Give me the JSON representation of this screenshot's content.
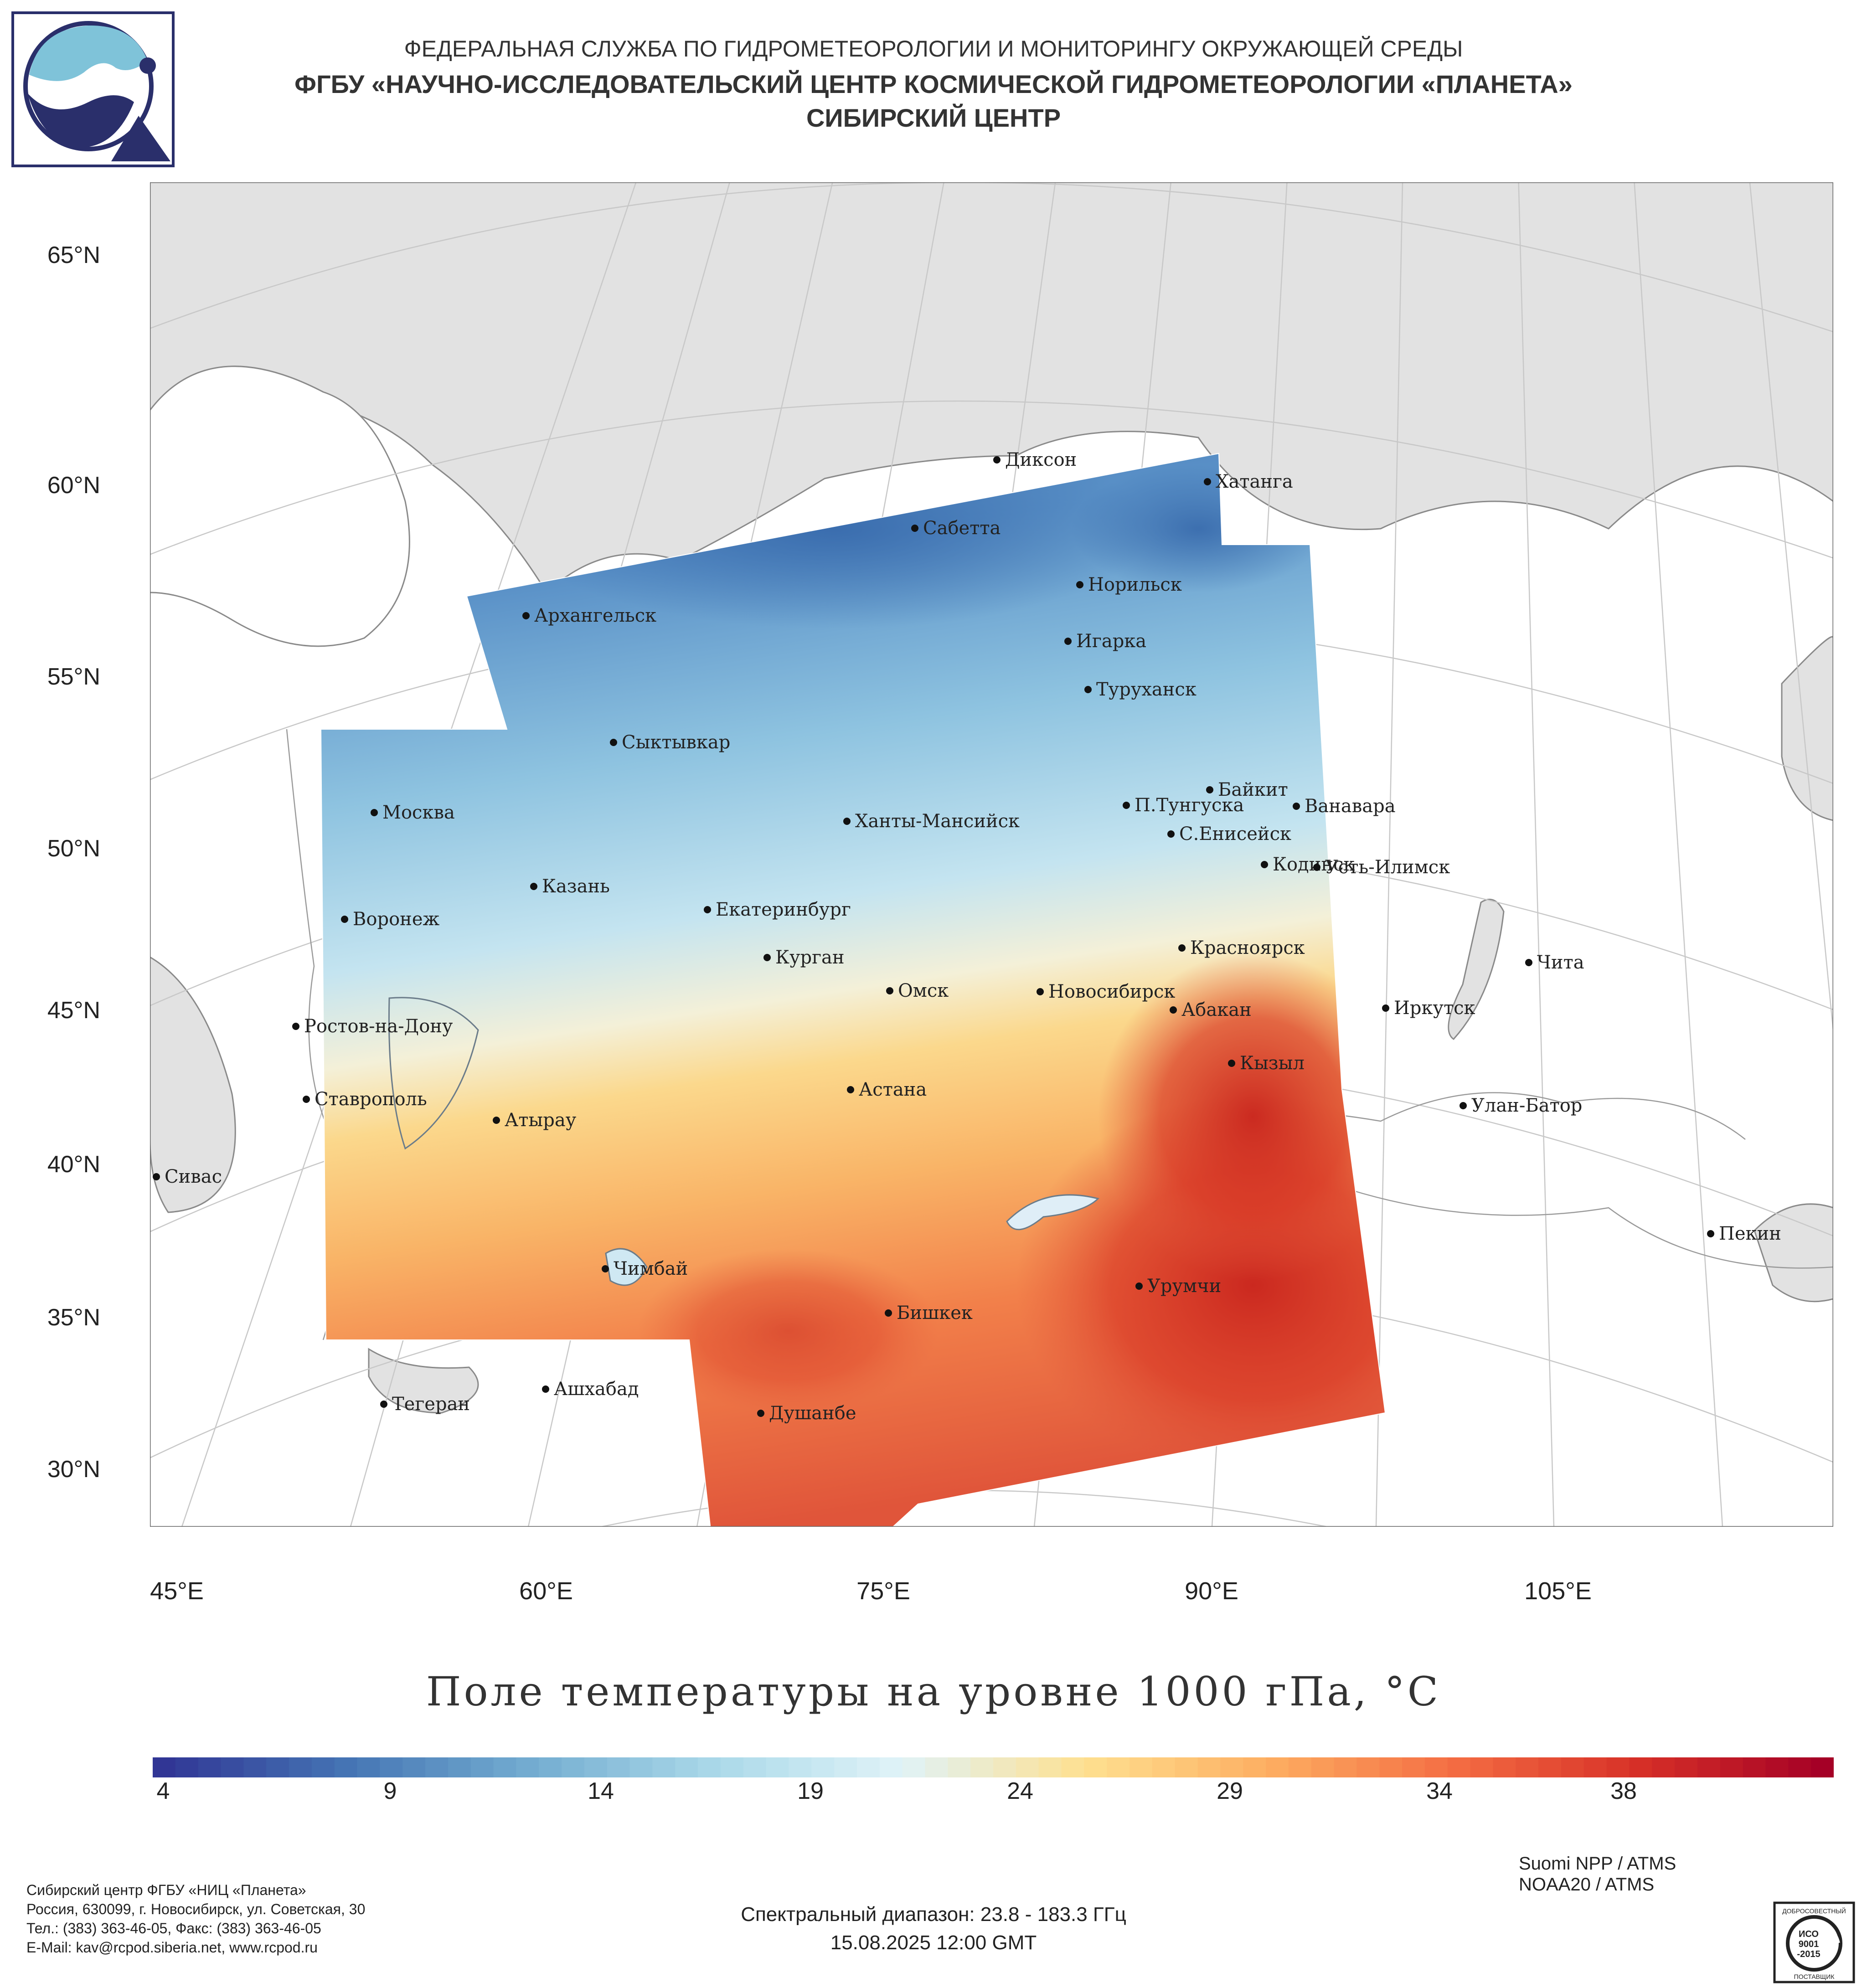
{
  "header": {
    "line1": "ФЕДЕРАЛЬНАЯ СЛУЖБА ПО ГИДРОМЕТЕОРОЛОГИИ И МОНИТОРИНГУ ОКРУЖАЮЩЕЙ СРЕДЫ",
    "line2": "ФГБУ «НАУЧНО-ИССЛЕДОВАТЕЛЬСКИЙ ЦЕНТР КОСМИЧЕСКОЙ ГИДРОМЕТЕОРОЛОГИИ «ПЛАНЕТА»",
    "line3": "СИБИРСКИЙ ЦЕНТР"
  },
  "map": {
    "title": "Поле температуры на уровне 1000 гПа, °C",
    "lat_labels": [
      "65°N",
      "60°N",
      "55°N",
      "50°N",
      "45°N",
      "40°N",
      "35°N",
      "30°N"
    ],
    "lon_labels": [
      "45°E",
      "60°E",
      "75°E",
      "90°E",
      "105°E"
    ],
    "cities": [
      {
        "name": "Диксон"
      },
      {
        "name": "Хатанга"
      },
      {
        "name": "Сабетта"
      },
      {
        "name": "Норильск"
      },
      {
        "name": "Архангельск"
      },
      {
        "name": "Игарка"
      },
      {
        "name": "Туруханск"
      },
      {
        "name": "Сыктывкар"
      },
      {
        "name": "Байкит"
      },
      {
        "name": "П.Тунгуска"
      },
      {
        "name": "Ванавара"
      },
      {
        "name": "Москва"
      },
      {
        "name": "Ханты-Мансийск"
      },
      {
        "name": "С.Енисейск"
      },
      {
        "name": "Кодинск"
      },
      {
        "name": "Усть-Илимск"
      },
      {
        "name": "Казань"
      },
      {
        "name": "Екатеринбург"
      },
      {
        "name": "Воронеж"
      },
      {
        "name": "Красноярск"
      },
      {
        "name": "Курган"
      },
      {
        "name": "Чита"
      },
      {
        "name": "Омск"
      },
      {
        "name": "Новосибирск"
      },
      {
        "name": "Иркутск"
      },
      {
        "name": "Абакан"
      },
      {
        "name": "Ростов-на-Дону"
      },
      {
        "name": "Кызыл"
      },
      {
        "name": "Астана"
      },
      {
        "name": "Ставрополь"
      },
      {
        "name": "Улан-Батор"
      },
      {
        "name": "Атырау"
      },
      {
        "name": "Сивас"
      },
      {
        "name": "Пекин"
      },
      {
        "name": "Чимбай"
      },
      {
        "name": "Урумчи"
      },
      {
        "name": "Бишкек"
      },
      {
        "name": "Ашхабад"
      },
      {
        "name": "Тегеран"
      },
      {
        "name": "Душанбе"
      }
    ]
  },
  "colorbar": {
    "ticks": [
      "4",
      "9",
      "14",
      "19",
      "24",
      "29",
      "34",
      "38"
    ],
    "min": 4,
    "max": 41,
    "colors": [
      "#313695",
      "#4575b4",
      "#74add1",
      "#abd9e9",
      "#e0f3f8",
      "#fee090",
      "#fdae61",
      "#f46d43",
      "#d73027",
      "#a50026"
    ]
  },
  "footer": {
    "contacts": [
      "Сибирский центр ФГБУ «НИЦ «Планета»",
      "Россия, 630099, г. Новосибирск, ул. Советская, 30",
      "Тел.: (383) 363-46-05, Факс: (383) 363-46-05",
      "E-Mail: kav@rcpod.siberia.net, www.rcpod.ru"
    ],
    "satellites": [
      "Suomi NPP / ATMS",
      "NOAA20 / ATMS"
    ],
    "spectral": "Спектральный диапазон: 23.8 - 183.3 ГГц",
    "datetime": "15.08.2025 12:00 GMT",
    "iso": {
      "top": "ДОБРОСОВЕСТНЫЙ",
      "l1": "ИСО",
      "l2": "9001",
      "l3": "-2015",
      "bottom": "ПОСТАВЩИК"
    }
  }
}
